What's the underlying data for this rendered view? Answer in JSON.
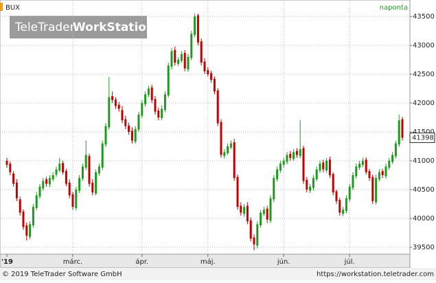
{
  "chart_data": {
    "type": "candlestick",
    "title": "BUX",
    "subtitle": "naponta",
    "watermark": {
      "part1": "TeleTrader",
      "part2": "WorkStation"
    },
    "footer_left": "© 2019 TeleTrader Software GmbH",
    "footer_right": "https://workstation.teletrader.com",
    "up_color": "#1e9a1e",
    "down_color": "#c00000",
    "grid": true,
    "ylim": [
      39381,
      43786
    ],
    "yticks": [
      39500,
      40000,
      40500,
      41000,
      41500,
      42000,
      42500,
      43000,
      43500
    ],
    "xticks": [
      {
        "value": 0,
        "label": "'19"
      },
      {
        "value": 20,
        "label": "márc."
      },
      {
        "value": 41,
        "label": "ápr."
      },
      {
        "value": 61,
        "label": "máj."
      },
      {
        "value": 84,
        "label": "jún."
      },
      {
        "value": 104,
        "label": "júl."
      }
    ],
    "last_value": 41398,
    "open": [
      41000,
      40950,
      40780,
      40620,
      40330,
      40120,
      39880,
      39680,
      39880,
      40180,
      40380,
      40520,
      40680,
      40590,
      40680,
      40760,
      40830,
      40960,
      40820,
      40620,
      40420,
      40180,
      40480,
      40690,
      40880,
      41080,
      40620,
      40430,
      40780,
      40880,
      41280,
      41580,
      42120,
      42060,
      41970,
      41880,
      41720,
      41610,
      41520,
      41330,
      41540,
      41780,
      41980,
      42140,
      42270,
      42070,
      41870,
      41740,
      41880,
      42130,
      42630,
      42920,
      42680,
      42730,
      42870,
      42580,
      42780,
      43180,
      43520,
      43070,
      42720,
      42570,
      42520,
      42420,
      42220,
      41670,
      41080,
      41130,
      41230,
      41320,
      40720,
      40220,
      40080,
      40220,
      39970,
      39670,
      39530,
      39880,
      40080,
      40170,
      39960,
      40330,
      40680,
      40830,
      40930,
      40980,
      41120,
      41030,
      41170,
      41080,
      41220,
      40670,
      40480,
      40530,
      40680,
      40830,
      40970,
      40830,
      41020,
      40770,
      40470,
      40320,
      40080,
      40130,
      40330,
      40530,
      40730,
      40880,
      40930,
      41020,
      40820,
      40720,
      40280,
      40680,
      40820,
      40730,
      40880,
      40980,
      41080,
      41280,
      41720
    ],
    "high": [
      41050,
      40990,
      40820,
      40680,
      40380,
      40160,
      39930,
      39950,
      40250,
      40460,
      40600,
      40700,
      40720,
      40750,
      40800,
      40900,
      41050,
      41000,
      40860,
      40680,
      40460,
      40550,
      40750,
      40950,
      41350,
      41120,
      40680,
      40850,
      40950,
      41350,
      41650,
      42450,
      42200,
      42100,
      42020,
      41950,
      41780,
      41660,
      41580,
      41600,
      41850,
      42050,
      42200,
      42300,
      42320,
      42120,
      41920,
      41960,
      42200,
      42700,
      42950,
      42980,
      42800,
      42900,
      42920,
      42850,
      43250,
      43550,
      43550,
      43120,
      42780,
      42620,
      42560,
      42460,
      42260,
      41720,
      41200,
      41300,
      41350,
      41380,
      40760,
      40280,
      40250,
      40280,
      40020,
      39720,
      39950,
      40150,
      40200,
      40220,
      40400,
      40750,
      40900,
      41000,
      41050,
      41150,
      41170,
      41200,
      41220,
      41700,
      41260,
      40720,
      40600,
      40750,
      40900,
      41000,
      41020,
      41050,
      41070,
      40800,
      40500,
      40360,
      40200,
      40400,
      40600,
      40800,
      40950,
      41000,
      41050,
      41060,
      40860,
      40760,
      40760,
      40850,
      40860,
      40950,
      41050,
      41150,
      41350,
      41800,
      41760
    ],
    "low": [
      40880,
      40750,
      40550,
      40300,
      40050,
      39800,
      39620,
      39640,
      39840,
      40140,
      40340,
      40480,
      40550,
      40540,
      40640,
      40720,
      40800,
      40760,
      40560,
      40350,
      40150,
      40140,
      40440,
      40650,
      40840,
      40550,
      40400,
      40400,
      40740,
      40840,
      41240,
      41540,
      42000,
      41900,
      41850,
      41650,
      41550,
      41450,
      41300,
      41300,
      41500,
      41740,
      41940,
      42100,
      42000,
      41800,
      41700,
      41700,
      41840,
      42100,
      42580,
      42650,
      42640,
      42700,
      42550,
      42540,
      42740,
      43140,
      43000,
      42650,
      42500,
      42460,
      42350,
      42150,
      41600,
      41050,
      41040,
      41100,
      41200,
      40650,
      40150,
      40050,
      40030,
      39900,
      39600,
      39450,
      39480,
      39840,
      40040,
      39920,
      39920,
      40280,
      40640,
      40790,
      40880,
      40940,
      41000,
      41000,
      41050,
      41040,
      40600,
      40450,
      40440,
      40480,
      40640,
      40790,
      40800,
      40790,
      40700,
      40400,
      40250,
      40050,
      40040,
      40090,
      40290,
      40490,
      40690,
      40840,
      40890,
      40760,
      40650,
      40250,
      40240,
      40640,
      40700,
      40690,
      40840,
      40940,
      41040,
      41240,
      41350
    ],
    "close": [
      40930,
      40800,
      40600,
      40350,
      40100,
      39850,
      39700,
      39900,
      40200,
      40400,
      40550,
      40650,
      40600,
      40700,
      40750,
      40850,
      40950,
      40800,
      40600,
      40400,
      40200,
      40500,
      40700,
      40900,
      41100,
      40600,
      40450,
      40800,
      40900,
      41300,
      41600,
      42100,
      42050,
      41950,
      41900,
      41700,
      41600,
      41500,
      41350,
      41550,
      41800,
      42000,
      42150,
      42250,
      42050,
      41850,
      41750,
      41900,
      42150,
      42650,
      42900,
      42700,
      42750,
      42850,
      42600,
      42800,
      43200,
      43500,
      43050,
      42700,
      42550,
      42500,
      42400,
      42200,
      41650,
      41100,
      41150,
      41250,
      41300,
      40700,
      40200,
      40100,
      40200,
      39950,
      39650,
      39550,
      39900,
      40100,
      40150,
      39980,
      40350,
      40700,
      40850,
      40950,
      41000,
      41100,
      41050,
      41150,
      41100,
      41200,
      40650,
      40500,
      40550,
      40700,
      40850,
      40950,
      40850,
      41000,
      40750,
      40450,
      40300,
      40100,
      40150,
      40350,
      40550,
      40750,
      40900,
      40950,
      41000,
      40800,
      40700,
      40300,
      40700,
      40800,
      40750,
      40900,
      41000,
      41100,
      41300,
      41700,
      41398
    ]
  }
}
